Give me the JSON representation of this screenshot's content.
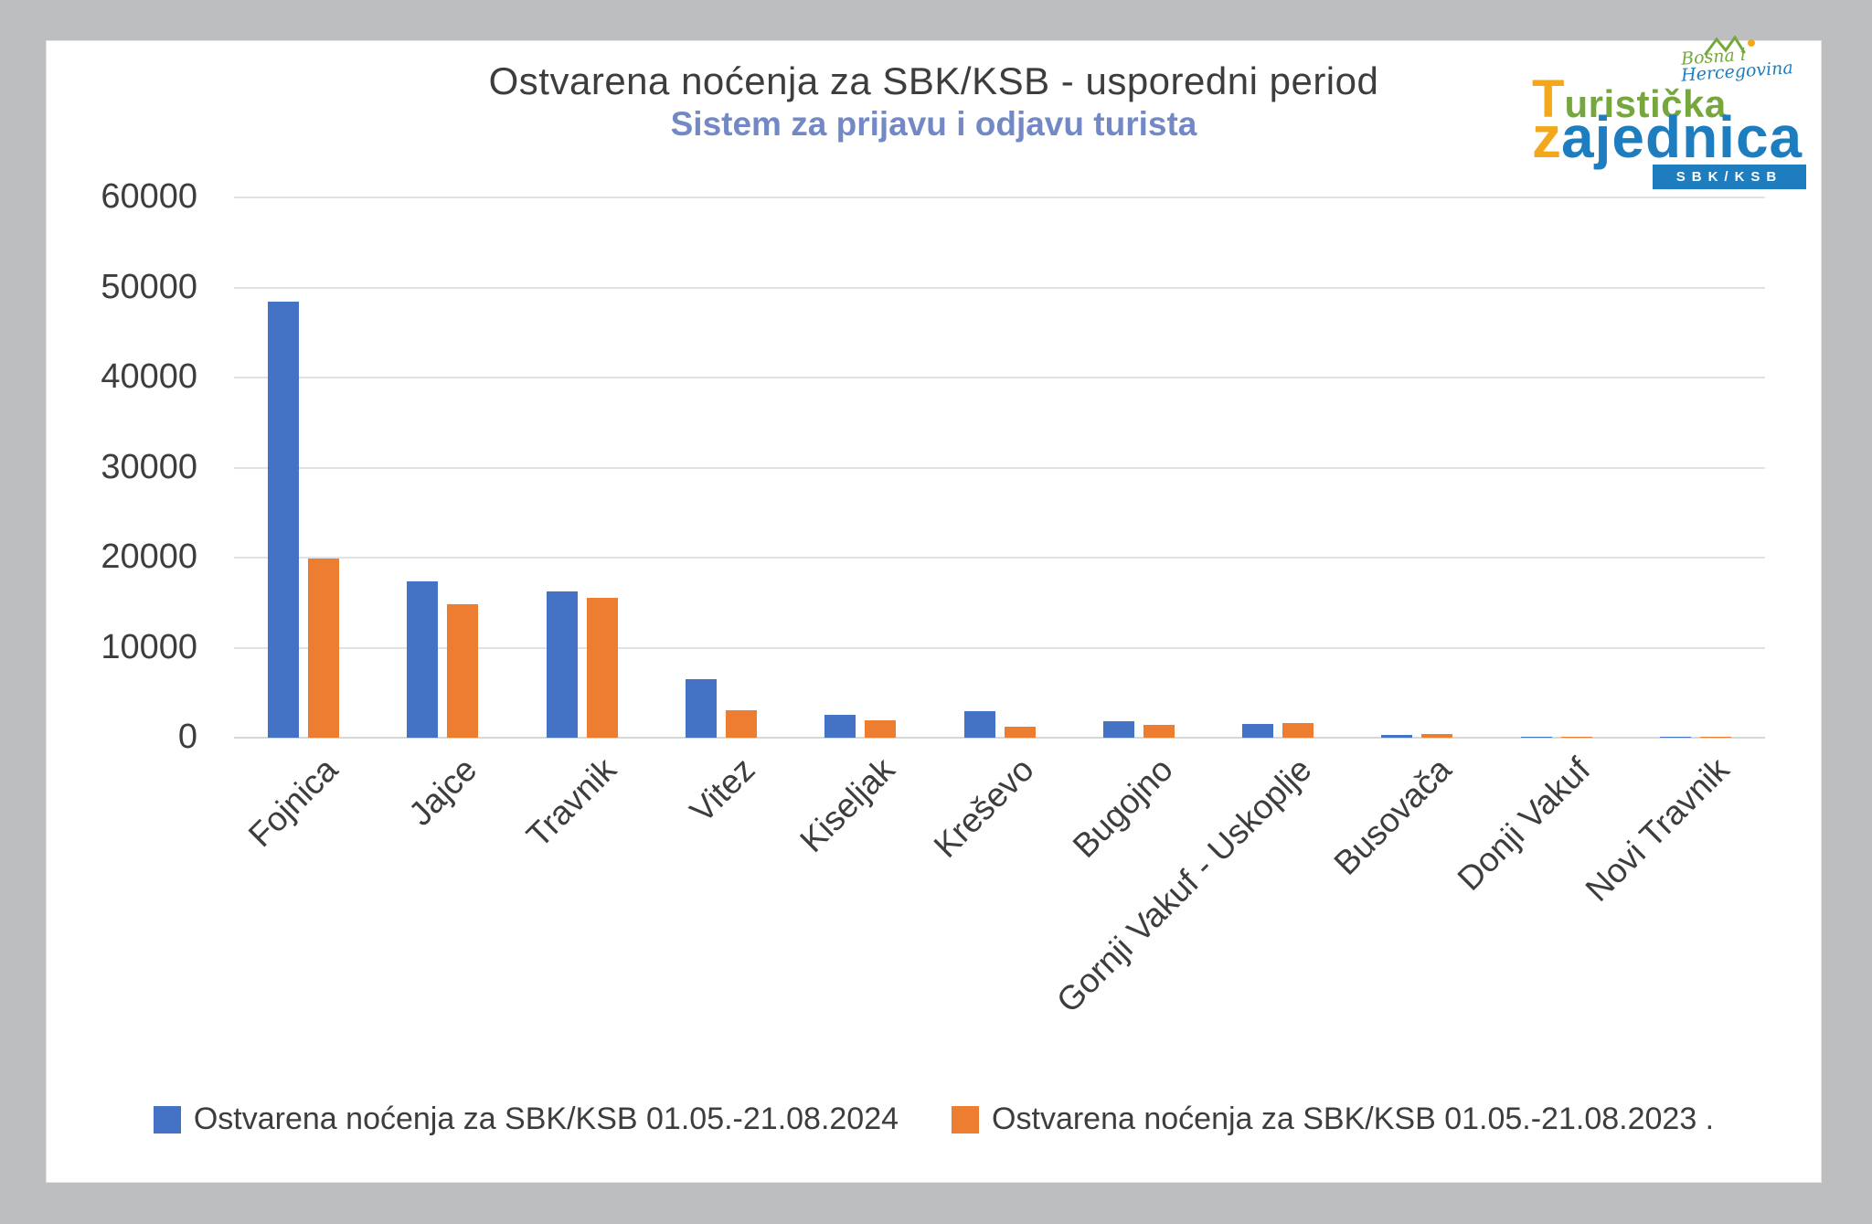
{
  "page": {
    "background": "#bdbec0",
    "card_background": "#ffffff"
  },
  "header": {
    "title": "Ostvarena noćenja za SBK/KSB - usporedni period",
    "subtitle": "Sistem za prijavu i odjavu turista",
    "title_color": "#3d3d3d",
    "subtitle_color": "#7389c6"
  },
  "logo": {
    "line1_initial": "T",
    "line1_rest": "uristička",
    "line2_initial": "z",
    "line2_rest": "ajednica",
    "script_line1": "Bosna i",
    "script_line2": "Hercegovina",
    "badge": "SBK/KSB",
    "colors": {
      "accent_orange": "#f3a81b",
      "green": "#76a73c",
      "blue": "#1e7dbf",
      "badge_bg": "#1e7dbf",
      "badge_text": "#ffffff"
    }
  },
  "chart_data": {
    "type": "bar",
    "title": "Ostvarena noćenja za SBK/KSB - usporedni period",
    "subtitle": "Sistem za prijavu i odjavu turista",
    "categories": [
      "Fojnica",
      "Jajce",
      "Travnik",
      "Vitez",
      "Kiseljak",
      "Kreševo",
      "Bugojno",
      "Gornji Vakuf - Uskoplje",
      "Busovača",
      "Donji Vakuf",
      "Novi Travnik"
    ],
    "series": [
      {
        "name": "Ostvarena noćenja za SBK/KSB 01.05.-21.08.2024",
        "color": "#4472c4",
        "values": [
          48400,
          17400,
          16250,
          6500,
          2550,
          2950,
          1850,
          1500,
          300,
          80,
          80
        ]
      },
      {
        "name": "Ostvarena noćenja za SBK/KSB 01.05.-21.08.2023 .",
        "color": "#ed7d31",
        "values": [
          19850,
          14800,
          15550,
          3050,
          1950,
          1200,
          1400,
          1650,
          400,
          70,
          70
        ]
      }
    ],
    "ylim": [
      0,
      60000
    ],
    "yticks": [
      0,
      10000,
      20000,
      30000,
      40000,
      50000,
      60000
    ],
    "grid": true,
    "gridline_color": "#e2e2e2",
    "axis_text_color": "#3d3d3d",
    "legend_position": "bottom"
  }
}
